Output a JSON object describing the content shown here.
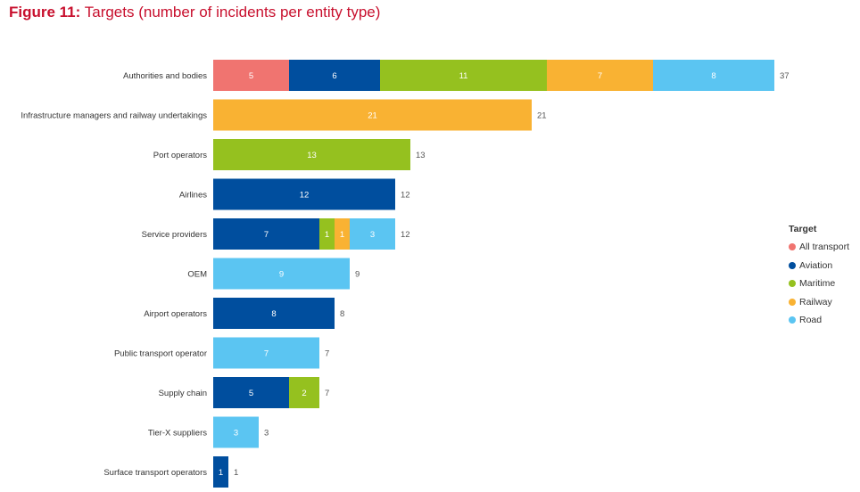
{
  "figure": {
    "number": "Figure 11:",
    "caption": "Targets (number of incidents per entity type)"
  },
  "chart_data": {
    "type": "bar",
    "orientation": "horizontal",
    "stacked": true,
    "categories": [
      "Authorities and bodies",
      "Infrastructure managers and railway undertakings",
      "Port operators",
      "Airlines",
      "Service providers",
      "OEM",
      "Airport operators",
      "Public transport operator",
      "Supply chain",
      "Tier-X suppliers",
      "Surface transport operators"
    ],
    "series": [
      {
        "name": "All transport",
        "color": "#f07470",
        "values": [
          5,
          0,
          0,
          0,
          0,
          0,
          0,
          0,
          0,
          0,
          0
        ]
      },
      {
        "name": "Aviation",
        "color": "#004e9e",
        "values": [
          6,
          0,
          0,
          12,
          7,
          0,
          8,
          0,
          5,
          0,
          1
        ]
      },
      {
        "name": "Maritime",
        "color": "#95c11f",
        "values": [
          11,
          0,
          13,
          0,
          1,
          0,
          0,
          0,
          2,
          0,
          0
        ]
      },
      {
        "name": "Railway",
        "color": "#f9b233",
        "values": [
          7,
          21,
          0,
          0,
          1,
          0,
          0,
          0,
          0,
          0,
          0
        ]
      },
      {
        "name": "Road",
        "color": "#5bc5f2",
        "values": [
          8,
          0,
          0,
          0,
          3,
          9,
          0,
          7,
          0,
          3,
          0
        ]
      }
    ],
    "totals": [
      37,
      21,
      13,
      12,
      12,
      9,
      8,
      7,
      7,
      3,
      1
    ],
    "xlim": [
      0,
      40
    ],
    "grid": false,
    "legend": {
      "title": "Target",
      "placement": "right"
    }
  }
}
